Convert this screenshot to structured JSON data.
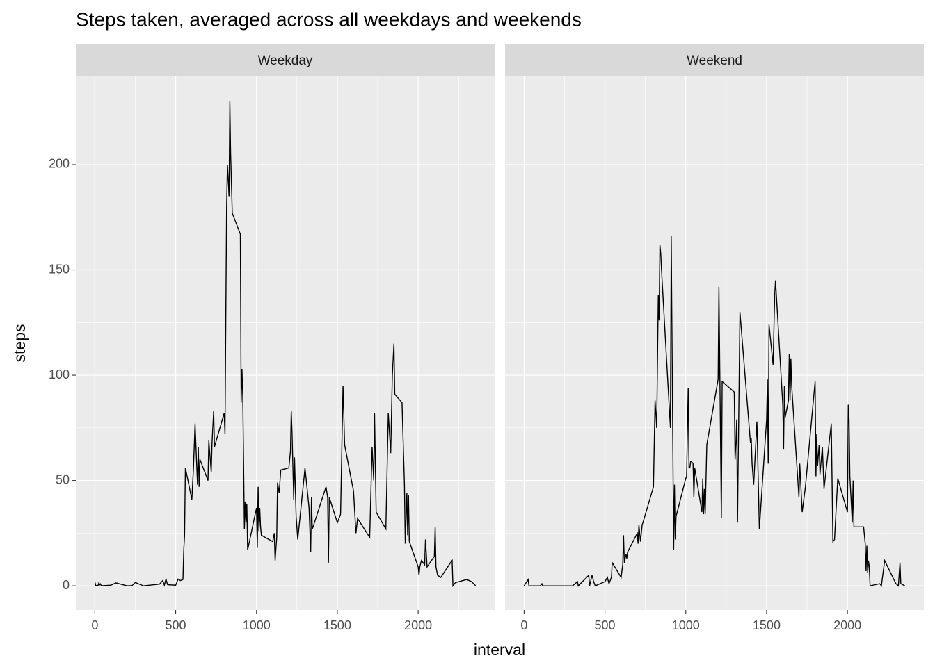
{
  "chart_data": {
    "type": "line",
    "title": "Steps taken, averaged across all weekdays and weekends",
    "x_label": "interval",
    "y_label": "steps",
    "xlim": [
      -117.75,
      2472.75
    ],
    "ylim": [
      -11.5,
      241.9
    ],
    "xticks": [
      0,
      500,
      1000,
      1500,
      2000
    ],
    "yticks": [
      0,
      50,
      100,
      150,
      200
    ],
    "grid": true,
    "color": "#000000",
    "panels": [
      {
        "name": "Weekday",
        "x": [
          0,
          5,
          10,
          15,
          20,
          25,
          30,
          35,
          40,
          55,
          100,
          130,
          200,
          230,
          250,
          300,
          400,
          420,
          430,
          440,
          450,
          500,
          515,
          530,
          545,
          550,
          555,
          560,
          600,
          610,
          620,
          625,
          635,
          640,
          645,
          650,
          700,
          705,
          720,
          725,
          735,
          740,
          800,
          805,
          815,
          820,
          830,
          835,
          840,
          845,
          850,
          900,
          905,
          910,
          915,
          925,
          930,
          935,
          940,
          945,
          1000,
          1005,
          1010,
          1015,
          1020,
          1025,
          1030,
          1100,
          1110,
          1115,
          1125,
          1130,
          1140,
          1150,
          1200,
          1210,
          1215,
          1220,
          1230,
          1235,
          1245,
          1255,
          1300,
          1325,
          1335,
          1340,
          1345,
          1350,
          1400,
          1430,
          1440,
          1445,
          1450,
          1500,
          1520,
          1535,
          1545,
          1600,
          1615,
          1625,
          1700,
          1715,
          1725,
          1730,
          1740,
          1800,
          1815,
          1830,
          1840,
          1850,
          1855,
          1900,
          1915,
          1920,
          1930,
          1935,
          1940,
          1945,
          2000,
          2005,
          2010,
          2020,
          2030,
          2040,
          2045,
          2055,
          2100,
          2105,
          2110,
          2120,
          2140,
          2200,
          2210,
          2215,
          2230,
          2300,
          2330,
          2355
        ],
        "values": [
          2,
          0.3,
          0.1,
          0.2,
          0.1,
          1.5,
          0.5,
          0.9,
          0,
          0.1,
          0.3,
          1.4,
          0,
          0.1,
          1.6,
          0,
          0.8,
          2.5,
          0.3,
          3.2,
          0.5,
          0.3,
          3.2,
          2.5,
          3,
          17,
          24,
          56,
          41,
          56,
          77,
          67,
          48,
          66,
          47,
          60,
          50,
          69,
          54,
          68,
          83,
          66,
          82,
          72,
          180,
          200,
          185,
          230,
          205,
          191,
          177,
          167,
          87,
          103,
          90,
          27,
          40,
          30,
          39,
          17,
          37,
          18,
          47,
          26,
          37,
          28,
          24,
          21,
          25,
          12,
          23,
          49,
          44,
          55,
          56,
          64,
          83,
          72,
          41,
          61,
          33,
          22,
          56,
          37,
          16,
          42,
          27,
          28,
          40,
          47,
          42,
          11,
          42,
          30,
          34,
          95,
          67,
          45,
          25,
          32,
          23,
          66,
          50,
          82,
          35,
          27,
          82,
          63,
          100,
          115,
          91,
          87,
          48,
          20,
          44,
          24,
          43,
          21,
          9,
          5,
          9,
          12,
          11,
          10,
          22,
          9,
          14,
          28,
          9,
          5,
          4,
          11,
          12,
          0,
          1.5,
          3,
          2,
          0.1
        ]
      },
      {
        "name": "Weekend",
        "x": [
          0,
          25,
          30,
          100,
          110,
          115,
          300,
          330,
          335,
          400,
          405,
          420,
          430,
          440,
          500,
          515,
          525,
          540,
          545,
          600,
          610,
          615,
          620,
          630,
          635,
          640,
          700,
          705,
          710,
          720,
          730,
          735,
          800,
          810,
          820,
          830,
          835,
          840,
          845,
          850,
          905,
          910,
          925,
          930,
          935,
          940,
          1000,
          1005,
          1015,
          1020,
          1025,
          1030,
          1035,
          1045,
          1050,
          1055,
          1100,
          1105,
          1110,
          1115,
          1120,
          1130,
          1200,
          1205,
          1210,
          1220,
          1225,
          1300,
          1305,
          1310,
          1315,
          1320,
          1335,
          1400,
          1405,
          1410,
          1420,
          1440,
          1455,
          1500,
          1505,
          1510,
          1515,
          1540,
          1550,
          1555,
          1600,
          1605,
          1610,
          1615,
          1635,
          1640,
          1645,
          1650,
          1655,
          1700,
          1705,
          1720,
          1740,
          1800,
          1805,
          1810,
          1815,
          1825,
          1830,
          1845,
          1855,
          1900,
          1910,
          1920,
          1940,
          2000,
          2005,
          2010,
          2015,
          2030,
          2035,
          2040,
          2100,
          2110,
          2115,
          2120,
          2125,
          2130,
          2135,
          2140,
          2200,
          2210,
          2230,
          2300,
          2315,
          2325,
          2330,
          2355
        ],
        "values": [
          0,
          3,
          0,
          0,
          1,
          0,
          0,
          2,
          0,
          5,
          0,
          5,
          2,
          0,
          2,
          4,
          1,
          4,
          11,
          4,
          10,
          24,
          11,
          15,
          13,
          16,
          25,
          20,
          29,
          21,
          29,
          30,
          47,
          88,
          75,
          138,
          126,
          162,
          158,
          150,
          75,
          166,
          17,
          48,
          22,
          33,
          51,
          52,
          94,
          56,
          56,
          59,
          59,
          58,
          42,
          56,
          35,
          51,
          34,
          46,
          34,
          67,
          98,
          142,
          106,
          32,
          97,
          92,
          60,
          68,
          79,
          30,
          130,
          68,
          70,
          58,
          48,
          78,
          27,
          79,
          98,
          58,
          124,
          105,
          138,
          145,
          86,
          65,
          95,
          80,
          88,
          110,
          88,
          108,
          95,
          42,
          58,
          35,
          47,
          97,
          52,
          72,
          57,
          67,
          53,
          66,
          46,
          77,
          21,
          22,
          51,
          35,
          86,
          79,
          52,
          30,
          50,
          28,
          28,
          20,
          7,
          19,
          6,
          12,
          9,
          0,
          1,
          0,
          12,
          1,
          0,
          11,
          1,
          0
        ]
      }
    ]
  }
}
